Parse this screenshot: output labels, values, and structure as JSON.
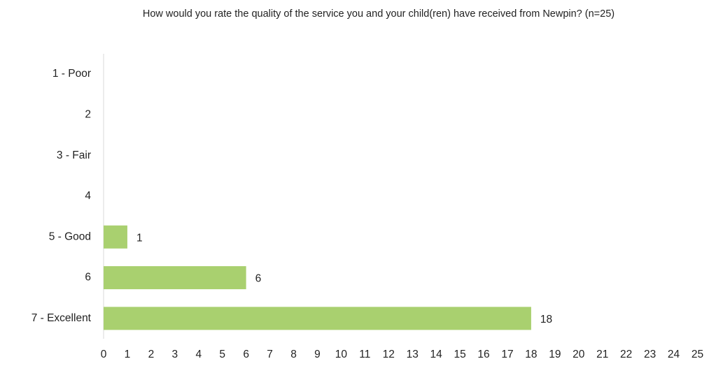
{
  "chart_data": {
    "type": "barh",
    "title": "How would you rate the quality of the service you and your child(ren) have received from Newpin? (n=25)",
    "categories": [
      "1 - Poor",
      "2",
      "3 - Fair",
      "4",
      "5 - Good",
      "6",
      "7 - Excellent"
    ],
    "values": [
      0,
      0,
      0,
      0,
      1,
      6,
      18
    ],
    "color": "#a9d06f",
    "xlim": [
      0,
      25
    ],
    "xticks": [
      0,
      1,
      2,
      3,
      4,
      5,
      6,
      7,
      8,
      9,
      10,
      11,
      12,
      13,
      14,
      15,
      16,
      17,
      18,
      19,
      20,
      21,
      22,
      23,
      24,
      25
    ],
    "grid": false
  }
}
